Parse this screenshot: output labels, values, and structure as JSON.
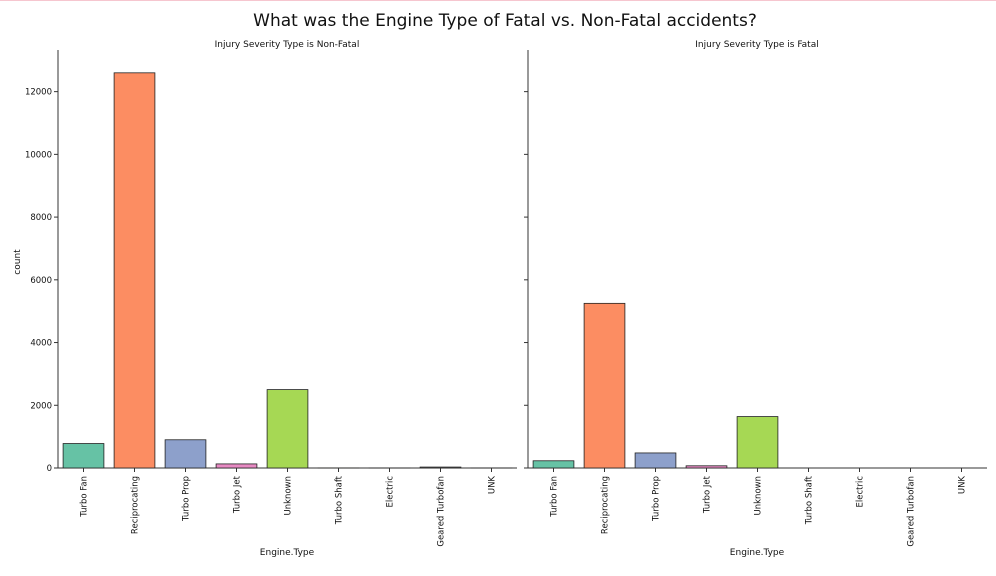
{
  "figure": {
    "title": "What was the Engine Type of Fatal vs. Non-Fatal accidents?"
  },
  "colors": [
    "#66c2a5",
    "#fc8d62",
    "#8da0cb",
    "#e78ac3",
    "#a6d854",
    "#ffd92f",
    "#e5c494",
    "#b3b3b3",
    "#bbbbbb"
  ],
  "chart_data": [
    {
      "type": "bar",
      "title": "Injury Severity Type is Non-Fatal",
      "xlabel": "Engine.Type",
      "ylabel": "count",
      "ylim": [
        0,
        13200
      ],
      "yticks": [
        0,
        2000,
        4000,
        6000,
        8000,
        10000,
        12000
      ],
      "categories": [
        "Turbo Fan",
        "Reciprocating",
        "Turbo Prop",
        "Turbo Jet",
        "Unknown",
        "Turbo Shaft",
        "Electric",
        "Geared Turbofan",
        "UNK"
      ],
      "values": [
        780,
        12600,
        900,
        130,
        2500,
        2,
        1,
        30,
        1
      ],
      "grid": false,
      "legend": "none"
    },
    {
      "type": "bar",
      "title": "Injury Severity Type is Fatal",
      "xlabel": "Engine.Type",
      "ylabel": "",
      "ylim": [
        0,
        13200
      ],
      "yticks": [
        0,
        2000,
        4000,
        6000,
        8000,
        10000,
        12000
      ],
      "categories": [
        "Turbo Fan",
        "Reciprocating",
        "Turbo Prop",
        "Turbo Jet",
        "Unknown",
        "Turbo Shaft",
        "Electric",
        "Geared Turbofan",
        "UNK"
      ],
      "values": [
        230,
        5250,
        480,
        70,
        1640,
        0,
        0,
        0,
        0
      ],
      "grid": false,
      "legend": "none"
    }
  ]
}
